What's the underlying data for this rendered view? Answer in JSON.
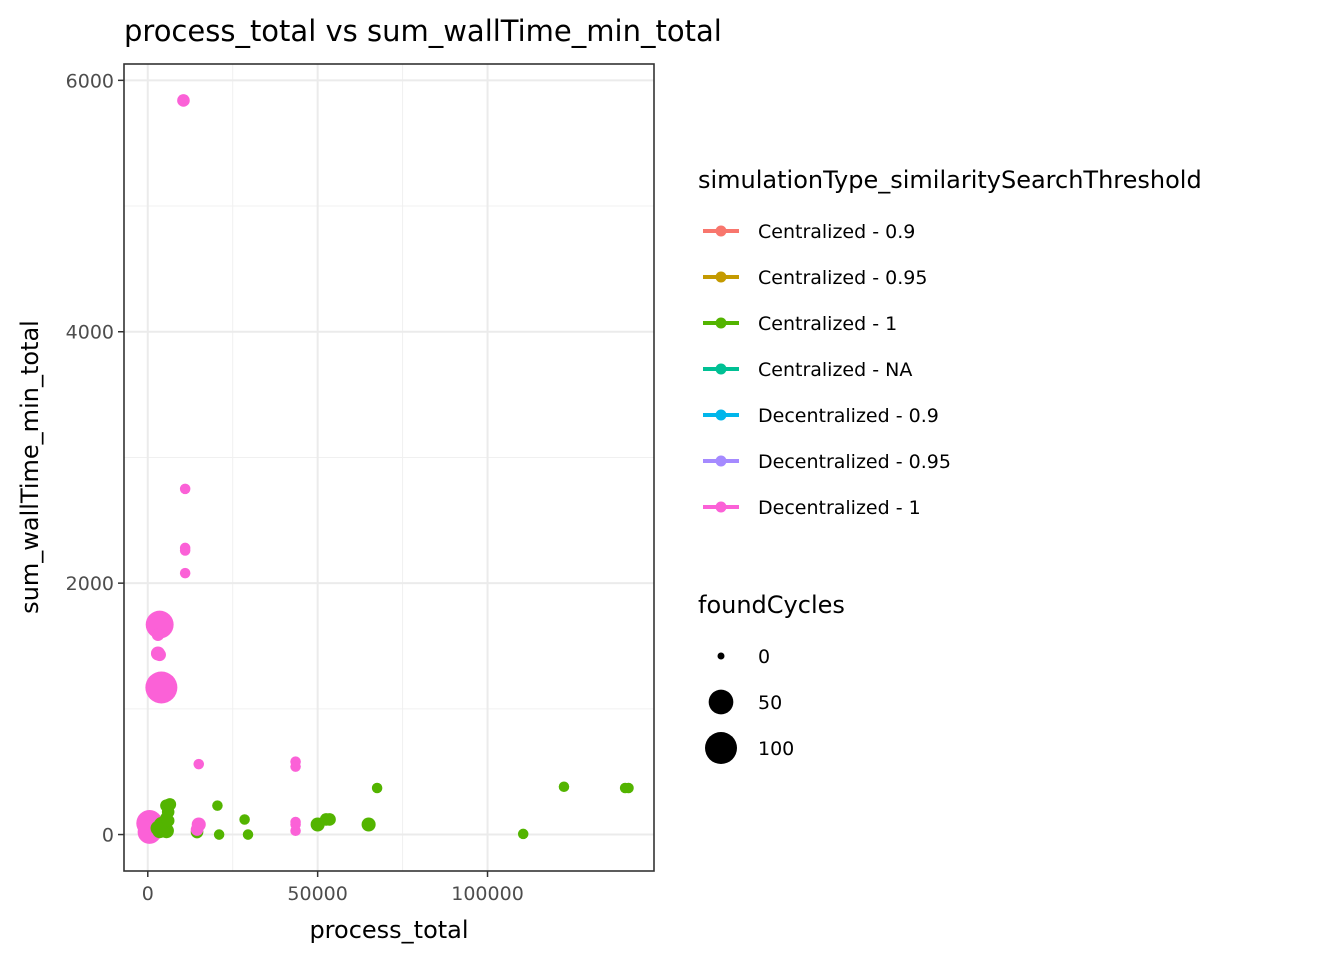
{
  "chart_data": {
    "type": "scatter",
    "title": "process_total  vs  sum_wallTime_min_total",
    "xlabel": "process_total",
    "ylabel": "sum_wallTime_min_total",
    "xlim": [
      -7000,
      149000
    ],
    "ylim": [
      -290,
      6130
    ],
    "xticks": [
      0,
      50000,
      100000
    ],
    "xtick_labels": [
      "0",
      "50000",
      "100000"
    ],
    "yticks": [
      0,
      2000,
      4000,
      6000
    ],
    "ytick_labels": [
      "0",
      "2000",
      "4000",
      "6000"
    ],
    "grid": true,
    "legend_placement": "right",
    "color_legend": {
      "title": "simulationType_similaritySearchThreshold",
      "entries": [
        {
          "label": "Centralized - 0.9",
          "color": "#F8766D"
        },
        {
          "label": "Centralized - 0.95",
          "color": "#C49A00"
        },
        {
          "label": "Centralized - 1",
          "color": "#53B400"
        },
        {
          "label": "Centralized - NA",
          "color": "#00C094"
        },
        {
          "label": "Decentralized - 0.9",
          "color": "#00B6EB"
        },
        {
          "label": "Decentralized - 0.95",
          "color": "#A58AFF"
        },
        {
          "label": "Decentralized - 1",
          "color": "#FB61D7"
        }
      ]
    },
    "size_legend": {
      "title": "foundCycles",
      "entries": [
        {
          "label": "0",
          "value": 0
        },
        {
          "label": "50",
          "value": 50
        },
        {
          "label": "100",
          "value": 100
        }
      ]
    },
    "series": [
      {
        "name": "Centralized - 1",
        "color": "#53B400",
        "points": [
          {
            "x": 3000,
            "y": 50,
            "size": 10
          },
          {
            "x": 3500,
            "y": 30,
            "size": 10
          },
          {
            "x": 4000,
            "y": 80,
            "size": 10
          },
          {
            "x": 4500,
            "y": 40,
            "size": 10
          },
          {
            "x": 5000,
            "y": 100,
            "size": 5
          },
          {
            "x": 5500,
            "y": 130,
            "size": 5
          },
          {
            "x": 5500,
            "y": 30,
            "size": 10
          },
          {
            "x": 6000,
            "y": 180,
            "size": 5
          },
          {
            "x": 6000,
            "y": 110,
            "size": 5
          },
          {
            "x": 5500,
            "y": 230,
            "size": 5
          },
          {
            "x": 6500,
            "y": 240,
            "size": 5
          },
          {
            "x": 14500,
            "y": 20,
            "size": 5
          },
          {
            "x": 20500,
            "y": 230,
            "size": 2
          },
          {
            "x": 21000,
            "y": 0,
            "size": 2
          },
          {
            "x": 28500,
            "y": 120,
            "size": 2
          },
          {
            "x": 29500,
            "y": 0,
            "size": 2
          },
          {
            "x": 50000,
            "y": 80,
            "size": 8
          },
          {
            "x": 52500,
            "y": 120,
            "size": 5
          },
          {
            "x": 53500,
            "y": 120,
            "size": 5
          },
          {
            "x": 65000,
            "y": 80,
            "size": 8
          },
          {
            "x": 67500,
            "y": 370,
            "size": 2
          },
          {
            "x": 110500,
            "y": 5,
            "size": 2
          },
          {
            "x": 122500,
            "y": 380,
            "size": 2
          },
          {
            "x": 140500,
            "y": 370,
            "size": 2
          },
          {
            "x": 141500,
            "y": 370,
            "size": 2
          }
        ]
      },
      {
        "name": "Decentralized - 1",
        "color": "#FB61D7",
        "points": [
          {
            "x": 10500,
            "y": 5840,
            "size": 5
          },
          {
            "x": 11000,
            "y": 2750,
            "size": 2
          },
          {
            "x": 11000,
            "y": 2280,
            "size": 2
          },
          {
            "x": 11000,
            "y": 2260,
            "size": 2
          },
          {
            "x": 11000,
            "y": 2080,
            "size": 2
          },
          {
            "x": 3500,
            "y": 1670,
            "size": 70
          },
          {
            "x": 3000,
            "y": 1590,
            "size": 5
          },
          {
            "x": 3000,
            "y": 1440,
            "size": 8
          },
          {
            "x": 3500,
            "y": 1430,
            "size": 5
          },
          {
            "x": 4000,
            "y": 1170,
            "size": 100
          },
          {
            "x": 15000,
            "y": 560,
            "size": 2
          },
          {
            "x": 15000,
            "y": 80,
            "size": 8
          },
          {
            "x": 14500,
            "y": 40,
            "size": 5
          },
          {
            "x": 43500,
            "y": 580,
            "size": 2
          },
          {
            "x": 43500,
            "y": 540,
            "size": 2
          },
          {
            "x": 43500,
            "y": 100,
            "size": 2
          },
          {
            "x": 43500,
            "y": 80,
            "size": 2
          },
          {
            "x": 43500,
            "y": 30,
            "size": 2
          },
          {
            "x": 500,
            "y": 90,
            "size": 60
          },
          {
            "x": 500,
            "y": 20,
            "size": 45
          }
        ]
      }
    ]
  }
}
